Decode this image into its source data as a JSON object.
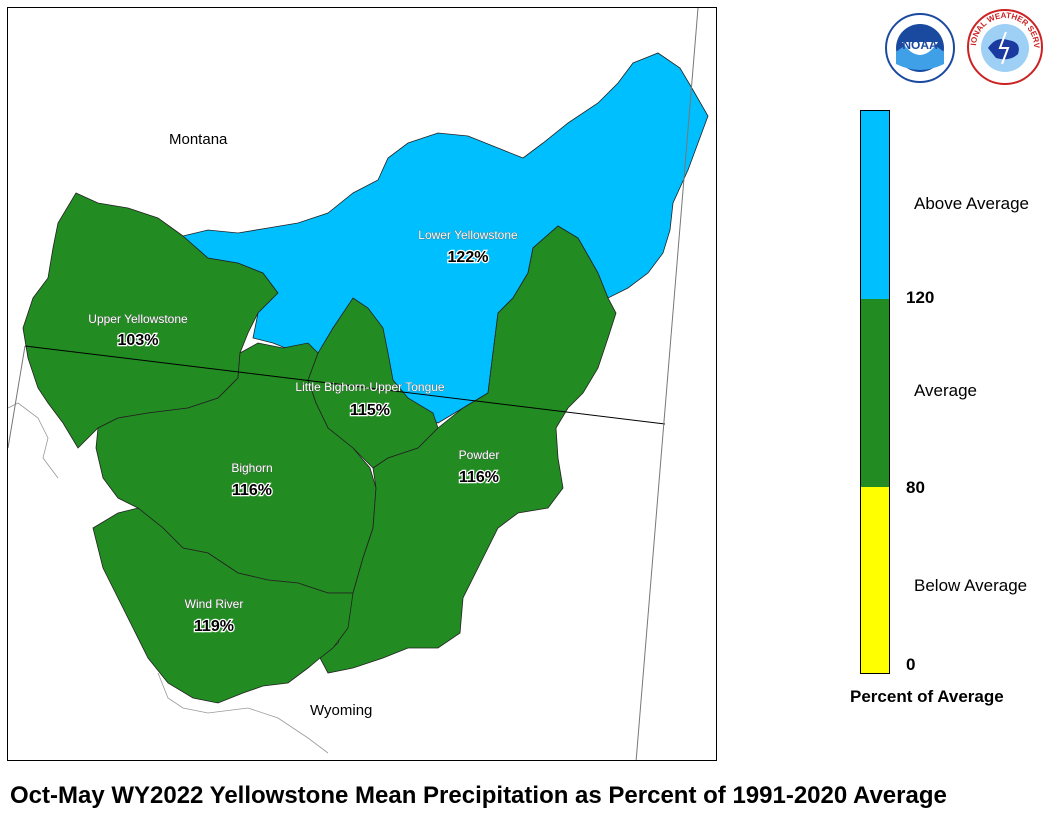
{
  "map": {
    "states": {
      "montana": "Montana",
      "wyoming": "Wyoming"
    },
    "basins": [
      {
        "id": "lower-yellowstone",
        "name": "Lower Yellowstone",
        "percent": "122%",
        "category": "Above Average",
        "color": "#00bfff"
      },
      {
        "id": "upper-yellowstone",
        "name": "Upper Yellowstone",
        "percent": "103%",
        "category": "Average",
        "color": "#228b22"
      },
      {
        "id": "little-bighorn-upper-tongue",
        "name": "Little Bighorn-Upper Tongue",
        "percent": "115%",
        "category": "Average",
        "color": "#228b22"
      },
      {
        "id": "bighorn",
        "name": "Bighorn",
        "percent": "116%",
        "category": "Average",
        "color": "#228b22"
      },
      {
        "id": "powder",
        "name": "Powder",
        "percent": "116%",
        "category": "Average",
        "color": "#228b22"
      },
      {
        "id": "wind-river",
        "name": "Wind River",
        "percent": "119%",
        "category": "Average",
        "color": "#228b22"
      }
    ]
  },
  "legend": {
    "title": "Percent of Average",
    "ticks": {
      "max": "120",
      "mid": "80",
      "min": "0"
    },
    "categories": [
      {
        "label": "Above Average",
        "color": "#00bfff"
      },
      {
        "label": "Average",
        "color": "#228b22"
      },
      {
        "label": "Below Average",
        "color": "#ffff00"
      }
    ]
  },
  "caption": "Oct-May WY2022 Yellowstone Mean Precipitation as Percent of 1991-2020 Average",
  "logos": [
    {
      "name": "noaa-logo",
      "text": "NOAA"
    },
    {
      "name": "nws-logo",
      "text": "NATIONAL WEATHER SERVICE"
    }
  ]
}
